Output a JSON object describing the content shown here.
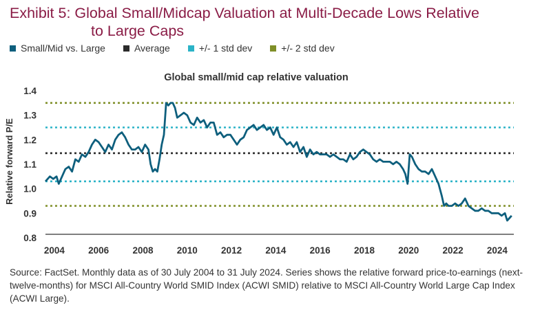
{
  "page": {
    "title_line1": "Exhibit 5: Global Small/Midcap Valuation at Multi-Decade Lows Relative",
    "title_line2": "to Large Caps",
    "source": "Source: FactSet. Monthly data as of 30 July 2004 to 31 July 2024. Series shows the relative forward price-to-earnings (next-twelve-months) for MSCI All-Country World SMID Index (ACWI SMID) relative to MSCI All-Country World Large Cap Index (ACWI Large)."
  },
  "legend": [
    {
      "label": "Small/Mid vs. Large",
      "color": "#0e5f7d"
    },
    {
      "label": "Average",
      "color": "#2b2b2b"
    },
    {
      "label": "+/- 1 std dev",
      "color": "#2bb3c7"
    },
    {
      "label": "+/- 2 std dev",
      "color": "#7f8f28"
    }
  ],
  "chart_data": {
    "type": "line",
    "title": "Global small/mid cap relative valuation",
    "xlabel": "",
    "ylabel": "Relative forward P/E",
    "xlim": [
      2003.6,
      2024.75
    ],
    "ylim": [
      0.8,
      1.4
    ],
    "xticks": [
      2004,
      2006,
      2008,
      2010,
      2012,
      2014,
      2016,
      2018,
      2020,
      2022,
      2024
    ],
    "yticks": [
      0.8,
      0.9,
      1.0,
      1.1,
      1.2,
      1.3,
      1.4
    ],
    "ytick_labels": [
      "0.8",
      "0.9",
      "1.0",
      "1.1",
      "1.2",
      "1.3",
      "1.4"
    ],
    "grid": false,
    "reference_lines": [
      {
        "name": "+2 std dev",
        "y": 1.35,
        "color": "#7f8f28",
        "style": "dotted"
      },
      {
        "name": "+1 std dev",
        "y": 1.25,
        "color": "#2bb3c7",
        "style": "dotted"
      },
      {
        "name": "Average",
        "y": 1.145,
        "color": "#2b2b2b",
        "style": "dotted"
      },
      {
        "name": "-1 std dev",
        "y": 1.03,
        "color": "#2bb3c7",
        "style": "dotted"
      },
      {
        "name": "-2 std dev",
        "y": 0.93,
        "color": "#7f8f28",
        "style": "dotted"
      }
    ],
    "series": [
      {
        "name": "Small/Mid vs. Large",
        "color": "#0e5f7d",
        "x": [
          2003.6,
          2003.8,
          2003.95,
          2004.1,
          2004.2,
          2004.35,
          2004.5,
          2004.65,
          2004.8,
          2004.95,
          2005.1,
          2005.25,
          2005.4,
          2005.55,
          2005.7,
          2005.85,
          2006.0,
          2006.15,
          2006.3,
          2006.45,
          2006.6,
          2006.75,
          2006.9,
          2007.05,
          2007.2,
          2007.35,
          2007.5,
          2007.65,
          2007.8,
          2007.95,
          2008.1,
          2008.25,
          2008.35,
          2008.45,
          2008.55,
          2008.65,
          2008.75,
          2008.85,
          2008.95,
          2009.05,
          2009.15,
          2009.25,
          2009.35,
          2009.45,
          2009.55,
          2009.7,
          2009.85,
          2010.0,
          2010.15,
          2010.3,
          2010.45,
          2010.6,
          2010.75,
          2010.9,
          2011.05,
          2011.2,
          2011.35,
          2011.5,
          2011.65,
          2011.8,
          2011.95,
          2012.1,
          2012.25,
          2012.4,
          2012.55,
          2012.7,
          2012.85,
          2013.0,
          2013.15,
          2013.3,
          2013.45,
          2013.6,
          2013.75,
          2013.9,
          2014.05,
          2014.2,
          2014.35,
          2014.5,
          2014.65,
          2014.8,
          2014.95,
          2015.1,
          2015.25,
          2015.4,
          2015.55,
          2015.7,
          2015.85,
          2016.0,
          2016.15,
          2016.3,
          2016.45,
          2016.6,
          2016.75,
          2016.9,
          2017.05,
          2017.2,
          2017.35,
          2017.5,
          2017.65,
          2017.8,
          2017.95,
          2018.1,
          2018.25,
          2018.4,
          2018.55,
          2018.7,
          2018.85,
          2019.0,
          2019.15,
          2019.3,
          2019.45,
          2019.6,
          2019.75,
          2019.85,
          2019.95,
          2020.05,
          2020.15,
          2020.3,
          2020.45,
          2020.6,
          2020.75,
          2020.9,
          2021.05,
          2021.2,
          2021.35,
          2021.5,
          2021.6,
          2021.7,
          2021.8,
          2021.95,
          2022.1,
          2022.25,
          2022.4,
          2022.55,
          2022.7,
          2022.85,
          2023.0,
          2023.15,
          2023.3,
          2023.45,
          2023.6,
          2023.75,
          2023.9,
          2024.05,
          2024.2,
          2024.35,
          2024.45,
          2024.55,
          2024.65
        ],
        "y": [
          1.03,
          1.05,
          1.04,
          1.05,
          1.02,
          1.05,
          1.08,
          1.09,
          1.07,
          1.12,
          1.11,
          1.14,
          1.13,
          1.15,
          1.18,
          1.2,
          1.19,
          1.17,
          1.15,
          1.18,
          1.16,
          1.2,
          1.22,
          1.23,
          1.21,
          1.18,
          1.16,
          1.16,
          1.17,
          1.15,
          1.18,
          1.16,
          1.1,
          1.07,
          1.08,
          1.07,
          1.12,
          1.18,
          1.22,
          1.35,
          1.34,
          1.35,
          1.35,
          1.33,
          1.29,
          1.3,
          1.31,
          1.3,
          1.27,
          1.26,
          1.29,
          1.27,
          1.28,
          1.25,
          1.27,
          1.27,
          1.22,
          1.23,
          1.21,
          1.22,
          1.22,
          1.2,
          1.18,
          1.2,
          1.21,
          1.24,
          1.25,
          1.26,
          1.24,
          1.25,
          1.26,
          1.24,
          1.25,
          1.22,
          1.25,
          1.21,
          1.2,
          1.18,
          1.19,
          1.17,
          1.19,
          1.15,
          1.17,
          1.13,
          1.16,
          1.14,
          1.15,
          1.14,
          1.14,
          1.14,
          1.13,
          1.14,
          1.13,
          1.12,
          1.12,
          1.11,
          1.14,
          1.12,
          1.13,
          1.15,
          1.16,
          1.15,
          1.14,
          1.12,
          1.11,
          1.12,
          1.11,
          1.11,
          1.11,
          1.1,
          1.11,
          1.1,
          1.08,
          1.06,
          1.02,
          1.14,
          1.13,
          1.1,
          1.08,
          1.07,
          1.07,
          1.06,
          1.08,
          1.05,
          1.02,
          0.97,
          0.93,
          0.94,
          0.93,
          0.93,
          0.94,
          0.93,
          0.94,
          0.96,
          0.93,
          0.92,
          0.91,
          0.91,
          0.92,
          0.91,
          0.91,
          0.9,
          0.9,
          0.9,
          0.89,
          0.9,
          0.87,
          0.88,
          0.89
        ]
      }
    ]
  }
}
